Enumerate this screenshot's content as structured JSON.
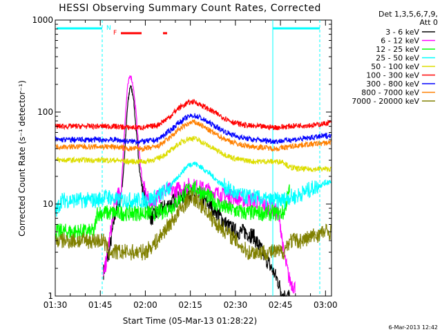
{
  "chart_data": {
    "type": "line",
    "title": "HESSI Observing Summary Count Rates, Corrected",
    "xlabel": "Start Time (05-Mar-13 01:28:22)",
    "ylabel": "Corrected Count Rate (s⁻¹ detector⁻¹)",
    "ylog": true,
    "ylim": [
      1,
      1000
    ],
    "xlim_min": [
      90,
      182
    ],
    "x_ticks": [
      "01:30",
      "01:45",
      "02:00",
      "02:15",
      "02:30",
      "02:45",
      "03:00"
    ],
    "x_tick_min": [
      90,
      105,
      120,
      135,
      150,
      165,
      180
    ],
    "y_ticks": [
      "1",
      "10",
      "100",
      "1000"
    ],
    "y_tick_vals": [
      1,
      10,
      100,
      1000
    ],
    "legend_header": [
      "Det 1,3,5,6,7,9,",
      "Att 0"
    ],
    "legend_position": "right",
    "series": [
      {
        "name": "3 - 6 keV",
        "color": "#000000",
        "x": [
          90,
          100,
          104,
          106,
          108,
          110,
          112,
          113,
          114,
          115,
          116,
          117,
          118,
          119,
          120,
          121,
          122,
          124,
          126,
          128,
          130,
          132,
          135,
          138,
          141,
          144,
          147,
          150,
          153,
          156,
          159,
          162,
          164,
          165,
          166,
          168,
          170,
          172,
          176,
          180,
          182
        ],
        "y": [
          null,
          null,
          null,
          1.8,
          3,
          8,
          12,
          30,
          110,
          200,
          150,
          60,
          25,
          14,
          11,
          9,
          7,
          8,
          9,
          10,
          11,
          12,
          13,
          12,
          10,
          8,
          6,
          5,
          5,
          4.5,
          3,
          2,
          1.5,
          1.2,
          1,
          1,
          null,
          null,
          null,
          null,
          null
        ]
      },
      {
        "name": "6 - 12 keV",
        "color": "#ff00ff",
        "x": [
          90,
          100,
          104,
          106,
          108,
          110,
          112,
          113,
          114,
          115,
          116,
          117,
          118,
          119,
          120,
          121,
          122,
          124,
          126,
          128,
          130,
          132,
          135,
          138,
          141,
          144,
          147,
          150,
          153,
          156,
          159,
          162,
          164,
          165,
          166,
          168,
          170,
          172,
          176,
          180,
          182
        ],
        "y": [
          null,
          null,
          null,
          1.5,
          4,
          11,
          14,
          60,
          180,
          260,
          190,
          90,
          35,
          18,
          13,
          11,
          10,
          12,
          14,
          14,
          14,
          15,
          16,
          15,
          14,
          13,
          12,
          12,
          11,
          11,
          10,
          9,
          8,
          6,
          3,
          1.5,
          1.2,
          null,
          null,
          null,
          null
        ]
      },
      {
        "name": "12 - 25 keV",
        "color": "#00ff00",
        "x": [
          90,
          95,
          100,
          103,
          104,
          106,
          110,
          114,
          118,
          120,
          124,
          128,
          130,
          132,
          135,
          138,
          141,
          144,
          147,
          150,
          153,
          156,
          160,
          164,
          166,
          168,
          172,
          176,
          180,
          182
        ],
        "y": [
          5,
          5,
          5,
          5,
          8,
          8,
          8,
          8,
          8,
          8,
          8,
          9,
          10,
          12,
          15,
          14,
          12,
          10,
          9,
          8.5,
          8,
          8,
          8,
          8,
          8,
          14,
          null,
          null,
          null,
          null
        ]
      },
      {
        "name": "25 - 50 keV",
        "color": "#00ffff",
        "x": [
          90,
          92,
          94,
          96,
          98,
          100,
          102,
          104,
          106,
          108,
          110,
          114,
          118,
          120,
          124,
          128,
          131,
          134,
          136,
          138,
          141,
          144,
          147,
          150,
          153,
          156,
          160,
          164,
          166,
          168,
          170,
          172,
          174,
          176,
          178,
          180,
          182
        ],
        "y": [
          8,
          11,
          11,
          11,
          11,
          11,
          11,
          11,
          12,
          12,
          11,
          11,
          11,
          11,
          12,
          15,
          20,
          26,
          28,
          26,
          22,
          18,
          15,
          13,
          12,
          12,
          11,
          11,
          11,
          12,
          12,
          13,
          14,
          15,
          16,
          17,
          18
        ]
      },
      {
        "name": "50 - 100 keV",
        "color": "#dddd00",
        "x": [
          90,
          95,
          100,
          104,
          106,
          110,
          114,
          118,
          120,
          124,
          128,
          131,
          134,
          136,
          138,
          141,
          144,
          147,
          150,
          153,
          156,
          160,
          164,
          166,
          168,
          172,
          176,
          180,
          182
        ],
        "y": [
          30,
          30,
          30,
          30,
          30,
          30,
          29,
          29,
          29,
          31,
          37,
          45,
          51,
          52,
          49,
          43,
          38,
          34,
          31,
          30,
          29,
          29,
          29,
          29,
          25,
          24,
          24,
          24,
          24
        ]
      },
      {
        "name": "100 - 300 keV",
        "color": "#ff0000",
        "x": [
          90,
          95,
          100,
          104,
          106,
          110,
          114,
          118,
          120,
          124,
          128,
          131,
          134,
          136,
          138,
          141,
          144,
          147,
          150,
          153,
          156,
          160,
          164,
          166,
          168,
          172,
          176,
          180,
          182
        ],
        "y": [
          70,
          70,
          70,
          70,
          70,
          70,
          68,
          68,
          68,
          72,
          88,
          110,
          125,
          130,
          122,
          108,
          95,
          84,
          76,
          72,
          70,
          69,
          68,
          69,
          70,
          72,
          72,
          75,
          78
        ]
      },
      {
        "name": "300 - 800 keV",
        "color": "#0000ff",
        "x": [
          90,
          95,
          100,
          104,
          106,
          110,
          114,
          118,
          120,
          124,
          128,
          131,
          134,
          136,
          138,
          141,
          144,
          147,
          150,
          153,
          156,
          160,
          164,
          166,
          168,
          172,
          176,
          180,
          182
        ],
        "y": [
          50,
          50,
          50,
          50,
          50,
          50,
          48,
          48,
          48,
          50,
          62,
          76,
          88,
          92,
          88,
          77,
          68,
          60,
          55,
          52,
          50,
          49,
          48,
          49,
          50,
          51,
          53,
          55,
          56
        ]
      },
      {
        "name": "800 - 7000 keV",
        "color": "#ff8000",
        "x": [
          90,
          95,
          100,
          104,
          106,
          110,
          114,
          118,
          120,
          124,
          128,
          131,
          134,
          136,
          138,
          141,
          144,
          147,
          150,
          153,
          156,
          160,
          164,
          166,
          168,
          172,
          176,
          180,
          182
        ],
        "y": [
          42,
          42,
          42,
          42,
          42,
          42,
          40,
          40,
          40,
          42,
          52,
          64,
          74,
          78,
          74,
          64,
          56,
          50,
          46,
          43,
          42,
          41,
          40,
          41,
          42,
          44,
          45,
          46,
          47
        ]
      },
      {
        "name": "7000 - 20000 keV",
        "color": "#808000",
        "x": [
          90,
          95,
          100,
          104,
          106,
          108,
          110,
          114,
          116,
          118,
          120,
          122,
          124,
          126,
          128,
          131,
          134,
          135,
          137,
          140,
          142,
          144,
          147,
          150,
          152,
          154,
          156,
          158,
          160,
          164,
          166,
          168,
          172,
          176,
          180,
          182
        ],
        "y": [
          4,
          4,
          4,
          4,
          4,
          3,
          3,
          3,
          3,
          3,
          3,
          3.5,
          4,
          5,
          6,
          8,
          11,
          12,
          11,
          9,
          7,
          6,
          5,
          4,
          3.5,
          3,
          3,
          3,
          3,
          3,
          3,
          4,
          4,
          4.5,
          5,
          5
        ]
      }
    ],
    "annotations": [
      "N",
      "F"
    ]
  },
  "timestamp": "6-Mar-2013 12:42"
}
